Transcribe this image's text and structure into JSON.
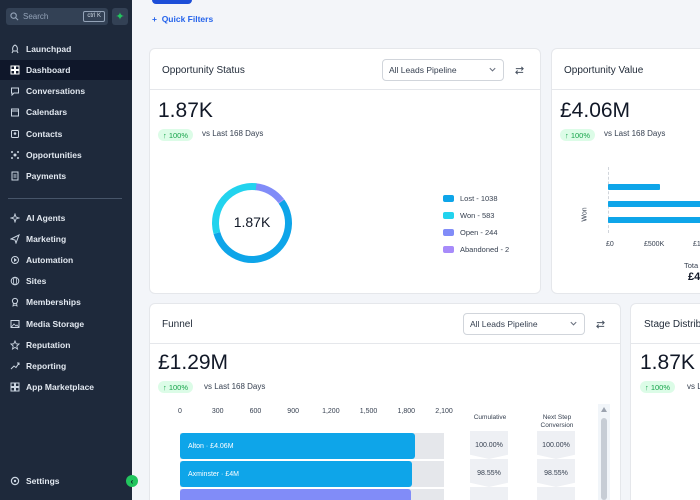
{
  "sidebar": {
    "search_placeholder": "Search",
    "search_shortcut": "ctrl K",
    "items": [
      {
        "label": "Launchpad",
        "icon": "rocket-icon"
      },
      {
        "label": "Dashboard",
        "icon": "grid-icon",
        "active": true
      },
      {
        "label": "Conversations",
        "icon": "chat-icon"
      },
      {
        "label": "Calendars",
        "icon": "calendar-icon"
      },
      {
        "label": "Contacts",
        "icon": "contacts-icon"
      },
      {
        "label": "Opportunities",
        "icon": "opportunities-icon"
      },
      {
        "label": "Payments",
        "icon": "payments-icon"
      },
      {
        "label": "AI Agents",
        "icon": "ai-sparkle-icon"
      },
      {
        "label": "Marketing",
        "icon": "send-icon"
      },
      {
        "label": "Automation",
        "icon": "automation-icon"
      },
      {
        "label": "Sites",
        "icon": "globe-icon"
      },
      {
        "label": "Memberships",
        "icon": "membership-icon"
      },
      {
        "label": "Media Storage",
        "icon": "image-icon"
      },
      {
        "label": "Reputation",
        "icon": "star-icon"
      },
      {
        "label": "Reporting",
        "icon": "trend-icon"
      },
      {
        "label": "App Marketplace",
        "icon": "apps-icon"
      }
    ],
    "settings_label": "Settings"
  },
  "quick_filters": "Quick Filters",
  "opportunity_status": {
    "title": "Opportunity Status",
    "pipeline": "All Leads Pipeline",
    "value": "1.87K",
    "change": "100%",
    "vs_text": "vs Last 168 Days",
    "center_label": "1.87K",
    "legend": [
      {
        "label": "Lost - 1038",
        "value": 1038,
        "color": "#0ea5e9"
      },
      {
        "label": "Won - 583",
        "value": 583,
        "color": "#22d3ee"
      },
      {
        "label": "Open - 244",
        "value": 244,
        "color": "#818cf8"
      },
      {
        "label": "Abandoned - 2",
        "value": 2,
        "color": "#a78bfa"
      }
    ]
  },
  "opportunity_value": {
    "title": "Opportunity Value",
    "value": "£4.06M",
    "change": "100%",
    "vs_text": "vs Last 168 Days",
    "y_label": "Won",
    "x_ticks": [
      "£0",
      "£500K",
      "£1"
    ],
    "total_label": "Tota",
    "total_value": "£4"
  },
  "funnel": {
    "title": "Funnel",
    "pipeline": "All Leads Pipeline",
    "value": "£1.29M",
    "change": "100%",
    "vs_text": "vs Last 168 Days",
    "ticks": [
      "0",
      "300",
      "600",
      "900",
      "1,200",
      "1,500",
      "1,800",
      "2,100"
    ],
    "col_cumulative": "Cumulative",
    "col_next_line1": "Next Step",
    "col_next_line2": "Conversion",
    "rows": [
      {
        "label": "Alton · £4.06M",
        "count": 1870,
        "cumulative": "100.00%",
        "next": "100.00%",
        "color": "#0ea5e9"
      },
      {
        "label": "Axminster · £4M",
        "count": 1843,
        "cumulative": "98.55%",
        "next": "98.55%",
        "color": "#0ea5e9"
      },
      {
        "label": "",
        "count": 1840,
        "cumulative": "",
        "next": "",
        "color": "#818cf8"
      }
    ]
  },
  "stage_distribution": {
    "title": "Stage Distrib",
    "value": "1.87K",
    "change": "100%",
    "vs_text": "vs L"
  },
  "chart_data": [
    {
      "type": "pie",
      "title": "Opportunity Status",
      "categories": [
        "Lost",
        "Won",
        "Open",
        "Abandoned"
      ],
      "values": [
        1038,
        583,
        244,
        2
      ]
    },
    {
      "type": "bar",
      "title": "Funnel",
      "categories": [
        "Alton",
        "Axminster"
      ],
      "values": [
        1870,
        1843
      ],
      "xlim": [
        0,
        2100
      ]
    }
  ]
}
